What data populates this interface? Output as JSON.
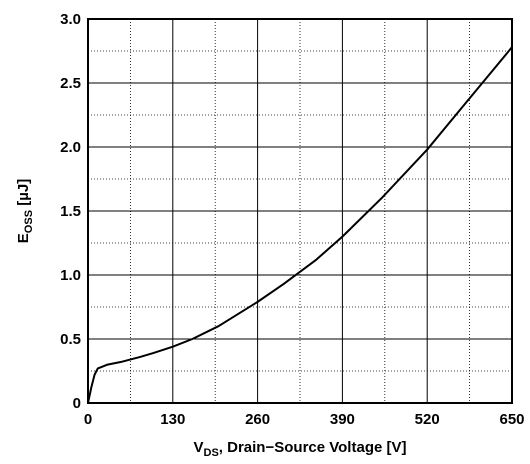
{
  "chart_data": {
    "type": "line",
    "title": "",
    "xlabel": {
      "main": "V",
      "sub": "DS",
      "rest": ", Drain−Source Voltage [V]"
    },
    "ylabel": {
      "main": "E",
      "sub": "OSS",
      "rest": " [µJ]"
    },
    "xlim": [
      0,
      650
    ],
    "ylim": [
      0,
      3.0
    ],
    "x_ticks": [
      0,
      130,
      260,
      390,
      520,
      650
    ],
    "x_tick_labels": [
      "0",
      "130",
      "260",
      "390",
      "520",
      "650"
    ],
    "y_ticks": [
      0,
      0.5,
      1.0,
      1.5,
      2.0,
      2.5,
      3.0
    ],
    "y_tick_labels": [
      "0",
      "0.5",
      "1.0",
      "1.5",
      "2.0",
      "2.5",
      "3.0"
    ],
    "x_minor_step": 65,
    "y_minor_step": 0.25,
    "grid": true,
    "series": [
      {
        "name": "",
        "x": [
          0,
          5,
          10,
          15,
          20,
          30,
          50,
          80,
          100,
          130,
          160,
          200,
          260,
          300,
          350,
          390,
          450,
          520,
          580,
          650
        ],
        "y": [
          0,
          0.12,
          0.22,
          0.27,
          0.28,
          0.3,
          0.32,
          0.36,
          0.39,
          0.44,
          0.5,
          0.6,
          0.79,
          0.93,
          1.12,
          1.3,
          1.6,
          1.98,
          2.35,
          2.78
        ]
      }
    ]
  }
}
